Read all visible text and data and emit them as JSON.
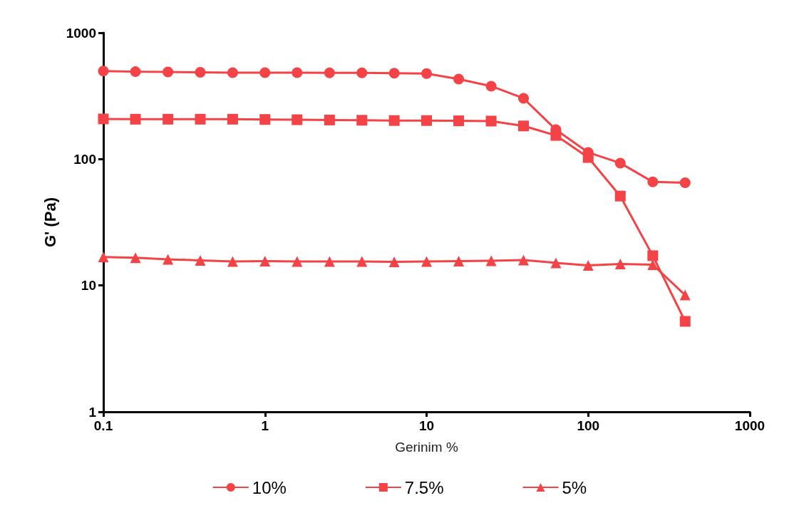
{
  "chart_data": {
    "type": "line",
    "xlabel": "Gerinim %",
    "ylabel": "G' (Pa)",
    "log": "xy",
    "grid": false,
    "legend": "bottom",
    "x": [
      0.1,
      0.158,
      0.251,
      0.398,
      0.631,
      1,
      1.58,
      2.51,
      3.98,
      6.31,
      10,
      15.8,
      25.1,
      39.8,
      63.1,
      100,
      158,
      251,
      398
    ],
    "xlim": [
      0.1,
      1000
    ],
    "xticks": [
      0.1,
      1,
      10,
      100,
      1000
    ],
    "ylim": [
      1,
      1000
    ],
    "yticks": [
      1,
      10,
      100,
      1000
    ],
    "series": [
      {
        "name": "10%",
        "color": "#f44346",
        "marker": "circle",
        "values": [
          497,
          492,
          490,
          486,
          484,
          484,
          483,
          482,
          481,
          478,
          475,
          430,
          378,
          303,
          171,
          113,
          93,
          66,
          65
        ]
      },
      {
        "name": "7.5%",
        "color": "#f44346",
        "marker": "square",
        "values": [
          208,
          207,
          207,
          207,
          207,
          206,
          205,
          204,
          203,
          202,
          202,
          201,
          200,
          183,
          154,
          103,
          51,
          17.2,
          5.2
        ]
      },
      {
        "name": "5%",
        "color": "#f44346",
        "marker": "triangle",
        "values": [
          16.8,
          16.6,
          16.1,
          15.8,
          15.5,
          15.6,
          15.5,
          15.5,
          15.5,
          15.4,
          15.5,
          15.6,
          15.7,
          15.9,
          15.1,
          14.4,
          14.8,
          14.6,
          8.4
        ]
      }
    ]
  }
}
